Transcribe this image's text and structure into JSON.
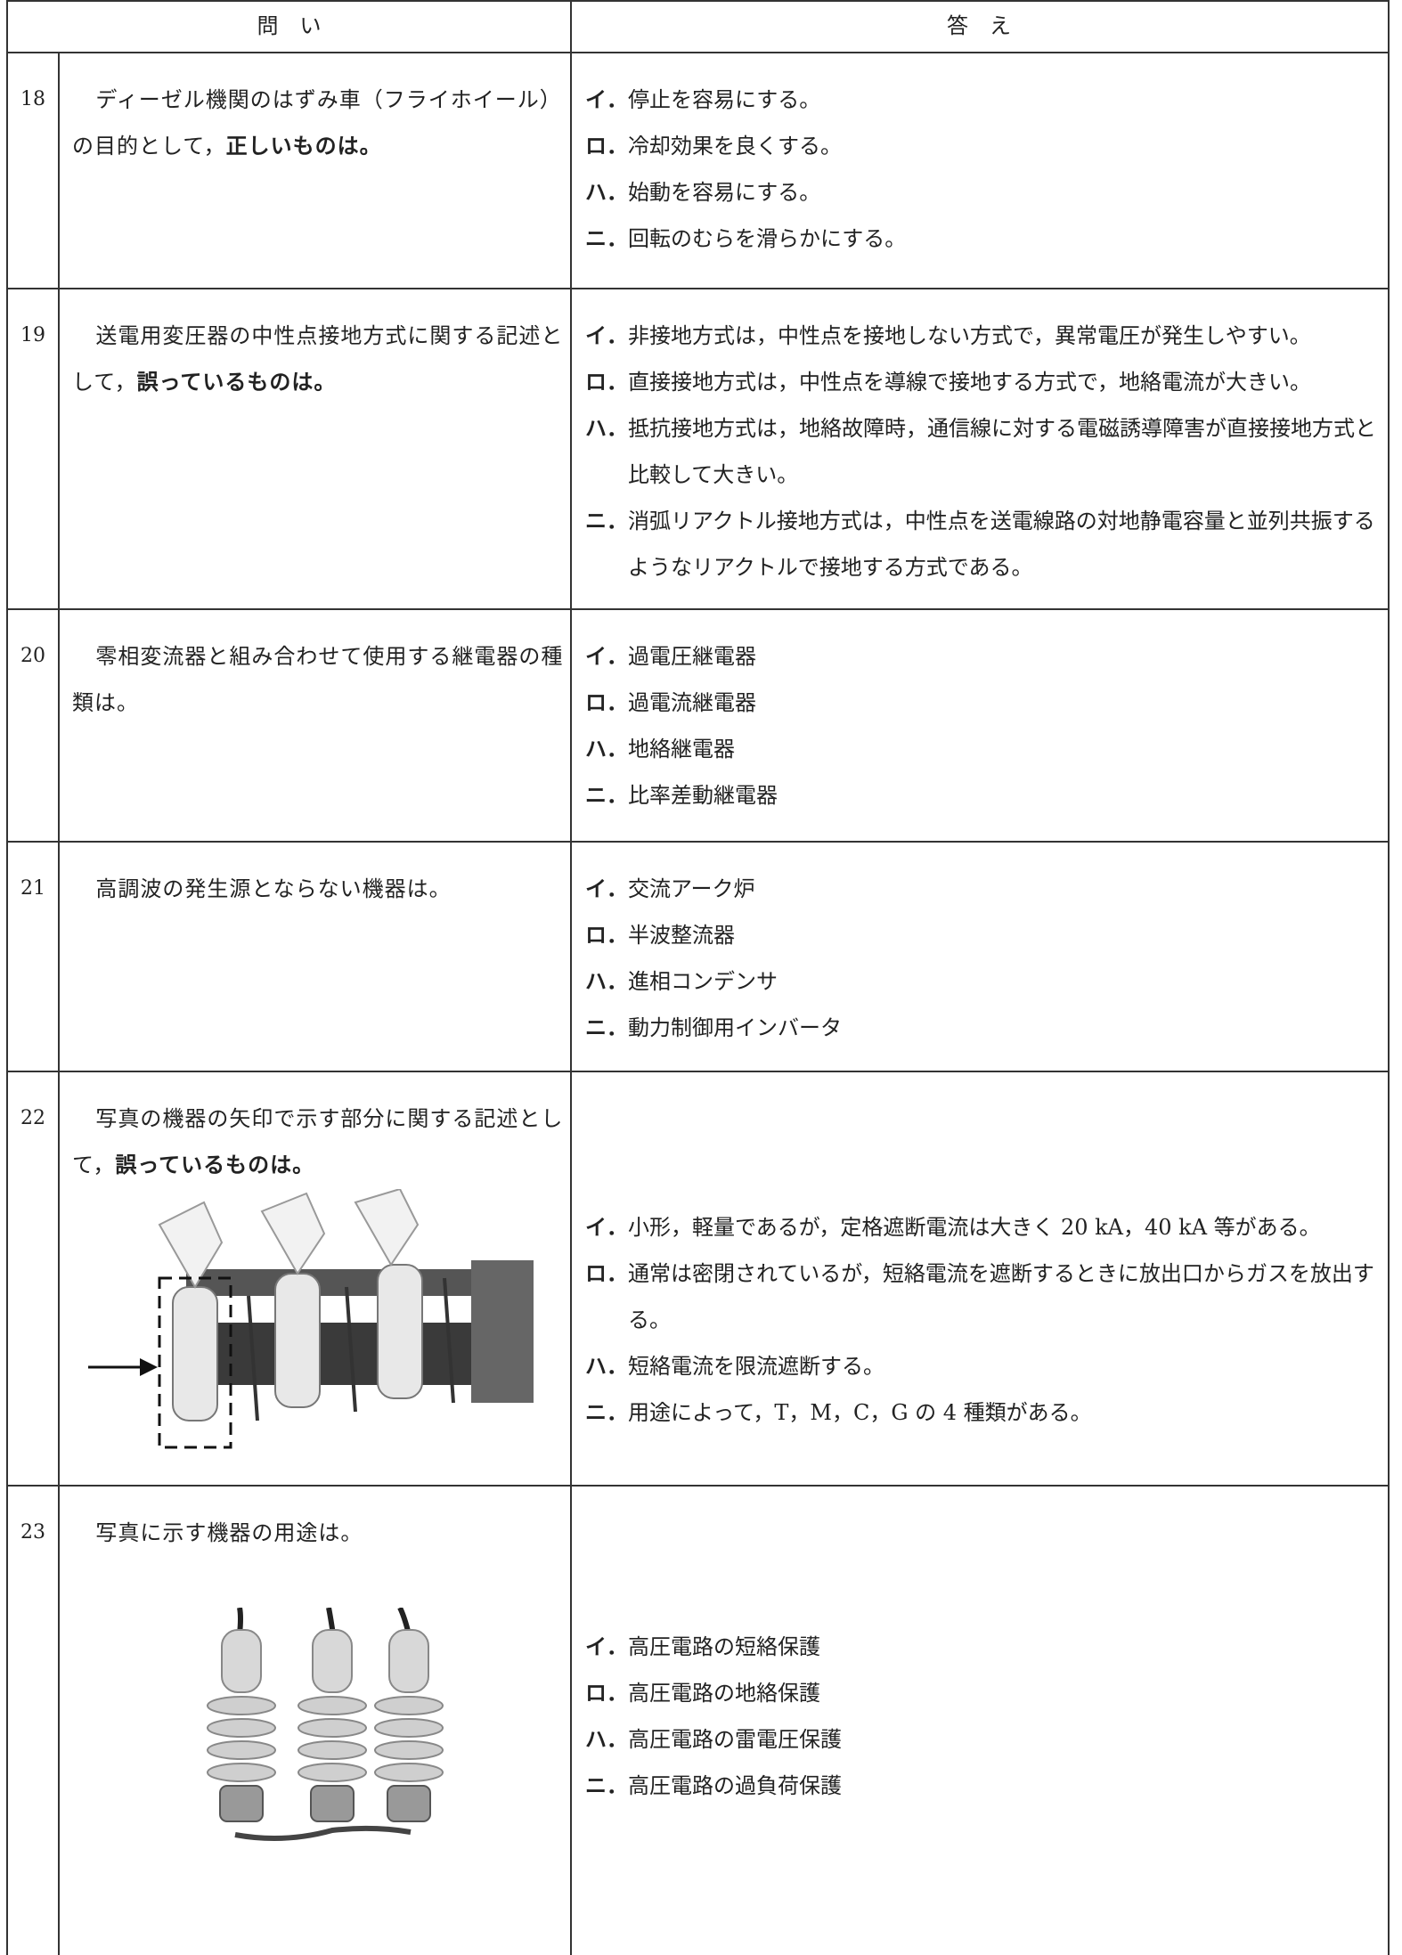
{
  "header": {
    "question": "問　い",
    "answer": "答　え"
  },
  "rows": [
    {
      "number": "18",
      "question": {
        "text": "ディーゼル機関のはずみ車（フライホイール）の目的として，",
        "emphasis": "正しいものは。"
      },
      "choices": [
        {
          "label": "イ．",
          "text": "停止を容易にする。"
        },
        {
          "label": "ロ．",
          "text": "冷却効果を良くする。"
        },
        {
          "label": "ハ．",
          "text": "始動を容易にする。"
        },
        {
          "label": "ニ．",
          "text": "回転のむらを滑らかにする。"
        }
      ]
    },
    {
      "number": "19",
      "question": {
        "text": "送電用変圧器の中性点接地方式に関する記述として，",
        "emphasis": "誤っているものは。"
      },
      "choices": [
        {
          "label": "イ．",
          "text": "非接地方式は，中性点を接地しない方式で，異常電圧が発生しやすい。"
        },
        {
          "label": "ロ．",
          "text": "直接接地方式は，中性点を導線で接地する方式で，地絡電流が大きい。"
        },
        {
          "label": "ハ．",
          "text": "抵抗接地方式は，地絡故障時，通信線に対する電磁誘導障害が直接接地方式と比較して大きい。"
        },
        {
          "label": "ニ．",
          "text": "消弧リアクトル接地方式は，中性点を送電線路の対地静電容量と並列共振するようなリアクトルで接地する方式である。"
        }
      ]
    },
    {
      "number": "20",
      "question": {
        "text": "零相変流器と組み合わせて使用する継電器の種類は。"
      },
      "choices": [
        {
          "label": "イ．",
          "text": "過電圧継電器"
        },
        {
          "label": "ロ．",
          "text": "過電流継電器"
        },
        {
          "label": "ハ．",
          "text": "地絡継電器"
        },
        {
          "label": "ニ．",
          "text": "比率差動継電器"
        }
      ]
    },
    {
      "number": "21",
      "question": {
        "text": "高調波の発生源とならない機器は。"
      },
      "choices": [
        {
          "label": "イ．",
          "text": "交流アーク炉"
        },
        {
          "label": "ロ．",
          "text": "半波整流器"
        },
        {
          "label": "ハ．",
          "text": "進相コンデンサ"
        },
        {
          "label": "ニ．",
          "text": "動力制御用インバータ"
        }
      ]
    },
    {
      "number": "22",
      "question": {
        "text": "写真の機器の矢印で示す部分に関する記述として，",
        "emphasis": "誤っているものは。"
      },
      "choices": [
        {
          "label": "イ．",
          "text": "小形，軽量であるが，定格遮断電流は大きく 20 kA，40 kA 等がある。"
        },
        {
          "label": "ロ．",
          "text": "通常は密閉されているが，短絡電流を遮断するときに放出口からガスを放出する。"
        },
        {
          "label": "ハ．",
          "text": "短絡電流を限流遮断する。"
        },
        {
          "label": "ニ．",
          "text": "用途によって，T，M，C，G の 4 種類がある。"
        }
      ]
    },
    {
      "number": "23",
      "question": {
        "text": "写真に示す機器の用途は。"
      },
      "choices": [
        {
          "label": "イ．",
          "text": "高圧電路の短絡保護"
        },
        {
          "label": "ロ．",
          "text": "高圧電路の地絡保護"
        },
        {
          "label": "ハ．",
          "text": "高圧電路の雷電圧保護"
        },
        {
          "label": "ニ．",
          "text": "高圧電路の過負荷保護"
        }
      ]
    }
  ]
}
